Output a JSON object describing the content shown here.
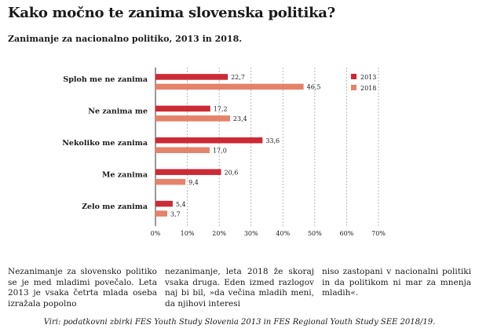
{
  "title": "Kako močno te zanima slovenska politika?",
  "subtitle": "Zanimanje za nacionalno politiko, 2013 in 2018.",
  "chart_data": {
    "type": "bar",
    "orientation": "horizontal",
    "categories": [
      "Sploh me ne zanima",
      "Ne zanima me",
      "Nekoliko me zanima",
      "Me zanima",
      "Zelo me zanima"
    ],
    "series": [
      {
        "name": "2013",
        "color": "#cc2a35",
        "values": [
          22.7,
          17.2,
          33.6,
          20.6,
          5.4
        ],
        "labels": [
          "22,7",
          "17,2",
          "33,6",
          "20,6",
          "5,4"
        ]
      },
      {
        "name": "2018",
        "color": "#e5826a",
        "values": [
          46.5,
          23.4,
          17.0,
          9.4,
          3.7
        ],
        "labels": [
          "46,5",
          "23,4",
          "17,0",
          "9,4",
          "3,7"
        ]
      }
    ],
    "xlim": [
      0,
      70
    ],
    "xticks": [
      "0%",
      "10%",
      "20%",
      "30%",
      "40%",
      "50%",
      "60%",
      "70%"
    ],
    "grid": "vertical dashed",
    "legend": "top-right"
  },
  "body": {
    "col1": "Nezanimanje za slovensko politiko se je med mladimi povečalo. Leta 2013 je vsaka četrta mlada oseba izražala popolno",
    "col2": "nezanimanje, leta 2018 že skoraj vsaka druga. Eden izmed razlogov naj bi bil, »da večina mladih meni, da njihovi interesi",
    "col3": "niso zastopani v nacionalni politiki in da politikom ni mar za mnenja mladih«."
  },
  "source": "Viri: podatkovni zbirki FES Youth Study Slovenia 2013 in FES Regional Youth Study SEE 2018/19."
}
